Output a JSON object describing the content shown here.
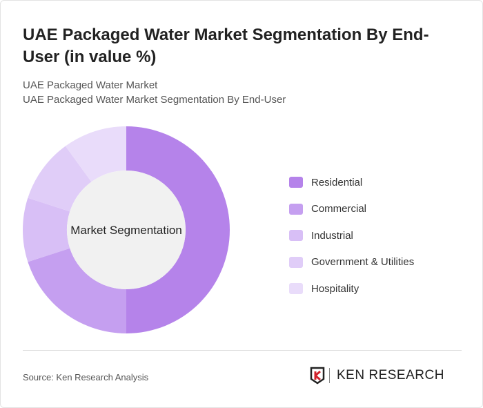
{
  "header": {
    "title": "UAE Packaged Water Market Segmentation By End-User (in value %)",
    "subtitle1": "UAE Packaged Water Market",
    "subtitle2": "UAE Packaged Water Market Segmentation By End-User"
  },
  "chart_data": {
    "type": "pie",
    "donut": true,
    "center_label": "Market Segmentation",
    "categories": [
      "Residential",
      "Commercial",
      "Industrial",
      "Government & Utilities",
      "Hospitality"
    ],
    "values": [
      50,
      20,
      10,
      10,
      10
    ],
    "colors": [
      "#b583ea",
      "#c59ff0",
      "#d8bff6",
      "#e0cdf8",
      "#e9dcfa"
    ],
    "legend_position": "right"
  },
  "footer": {
    "source": "Source: Ken Research Analysis",
    "logo_text": "KEN RESEARCH"
  }
}
